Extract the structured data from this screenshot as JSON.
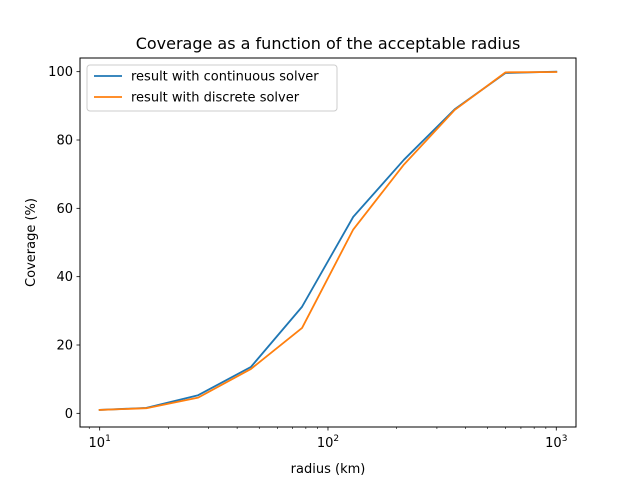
{
  "chart_data": {
    "type": "line",
    "title": "Coverage as a function of the acceptable radius",
    "xlabel": "radius (km)",
    "ylabel": "Coverage (%)",
    "xscale": "log",
    "xlim": [
      8.2,
      1220
    ],
    "ylim": [
      -4,
      104
    ],
    "x_major_ticks": [
      10,
      100,
      1000
    ],
    "x_tick_labels": [
      {
        "base": "10",
        "exp": "1"
      },
      {
        "base": "10",
        "exp": "2"
      },
      {
        "base": "10",
        "exp": "3"
      }
    ],
    "y_ticks": [
      0,
      20,
      40,
      60,
      80,
      100
    ],
    "y_tick_labels": [
      "0",
      "20",
      "40",
      "60",
      "80",
      "100"
    ],
    "legend_position": "top-left",
    "grid": false,
    "x": [
      10,
      16,
      27,
      46,
      77,
      129,
      215,
      359,
      599,
      1000
    ],
    "series": [
      {
        "name": "result with continuous solver",
        "color": "#1f77b4",
        "values": [
          1.0,
          1.6,
          5.3,
          13.6,
          31.2,
          57.5,
          74.2,
          89.0,
          99.6,
          100.0
        ]
      },
      {
        "name": "result with discrete solver",
        "color": "#ff7f0e",
        "values": [
          1.0,
          1.5,
          4.6,
          13.0,
          25.0,
          53.8,
          72.8,
          88.8,
          99.8,
          99.9
        ]
      }
    ]
  }
}
